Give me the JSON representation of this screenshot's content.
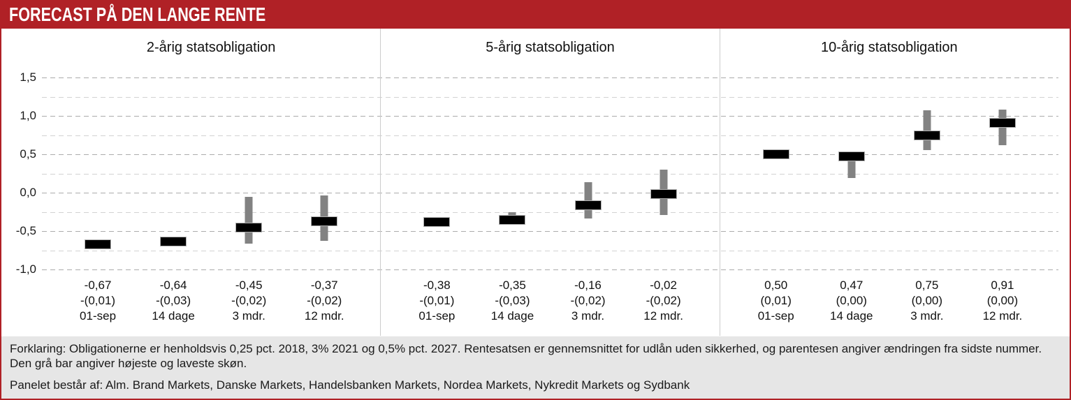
{
  "header": {
    "title": "FORECAST PÅ DEN LANGE RENTE"
  },
  "colors": {
    "accent_red": "#b02126",
    "bar_black": "#000000",
    "range_gray": "#828282",
    "grid_major": "#ababab",
    "grid_minor": "#d2d2d2",
    "separator": "#cccccc",
    "footer_bg": "#e6e6e6",
    "text": "#1a1a1a"
  },
  "chart_data": {
    "type": "bar",
    "subtype": "forecast-range-bars (black bar = consensus forecast, gray bar = highest/lowest estimate)",
    "unit": "pct.",
    "ylim": [
      -1.0,
      1.5
    ],
    "grid_step": 0.25,
    "grid": "dashed horizontal",
    "yticks": [
      {
        "value": 1.5,
        "label": "1,5"
      },
      {
        "value": 1.0,
        "label": "1,0"
      },
      {
        "value": 0.5,
        "label": "0,5"
      },
      {
        "value": 0.0,
        "label": "0,0"
      },
      {
        "value": -0.5,
        "label": "-0,5"
      },
      {
        "value": -1.0,
        "label": "-1,0"
      }
    ],
    "panels": [
      {
        "title": "2-årig statsobligation",
        "points": [
          {
            "period": "01-sep",
            "value": -0.67,
            "value_label": "-0,67",
            "change_label": "-(0,01)",
            "range_low": -0.69,
            "range_high": -0.65
          },
          {
            "period": "14 dage",
            "value": -0.64,
            "value_label": "-0,64",
            "change_label": "-(0,03)",
            "range_low": -0.66,
            "range_high": -0.62
          },
          {
            "period": "3 mdr.",
            "value": -0.45,
            "value_label": "-0,45",
            "change_label": "-(0,02)",
            "range_low": -0.66,
            "range_high": -0.05
          },
          {
            "period": "12 mdr.",
            "value": -0.37,
            "value_label": "-0,37",
            "change_label": "-(0,02)",
            "range_low": -0.63,
            "range_high": -0.04
          }
        ]
      },
      {
        "title": "5-årig statsobligation",
        "points": [
          {
            "period": "01-sep",
            "value": -0.38,
            "value_label": "-0,38",
            "change_label": "-(0,01)",
            "range_low": -0.4,
            "range_high": -0.36
          },
          {
            "period": "14 dage",
            "value": -0.35,
            "value_label": "-0,35",
            "change_label": "-(0,03)",
            "range_low": -0.37,
            "range_high": -0.25
          },
          {
            "period": "3 mdr.",
            "value": -0.16,
            "value_label": "-0,16",
            "change_label": "-(0,02)",
            "range_low": -0.34,
            "range_high": 0.14
          },
          {
            "period": "12 mdr.",
            "value": -0.02,
            "value_label": "-0,02",
            "change_label": "-(0,02)",
            "range_low": -0.29,
            "range_high": 0.3
          }
        ]
      },
      {
        "title": "10-årig statsobligation",
        "points": [
          {
            "period": "01-sep",
            "value": 0.5,
            "value_label": "0,50",
            "change_label": "(0,01)",
            "range_low": 0.48,
            "range_high": 0.52
          },
          {
            "period": "14 dage",
            "value": 0.47,
            "value_label": "0,47",
            "change_label": "(0,00)",
            "range_low": 0.19,
            "range_high": 0.5
          },
          {
            "period": "3 mdr.",
            "value": 0.75,
            "value_label": "0,75",
            "change_label": "(0,00)",
            "range_low": 0.55,
            "range_high": 1.07
          },
          {
            "period": "12 mdr.",
            "value": 0.91,
            "value_label": "0,91",
            "change_label": "(0,00)",
            "range_low": 0.62,
            "range_high": 1.08
          }
        ]
      }
    ]
  },
  "footer": {
    "note": "Forklaring: Obligationerne er henholdsvis 0,25 pct. 2018, 3% 2021 og 0,5% pct. 2027. Rentesatsen er gennemsnittet for udlån uden sikkerhed, og parentesen angiver ændringen fra sidste nummer. Den grå bar angiver højeste og laveste skøn.",
    "panel_note": "Panelet består af: Alm. Brand Markets, Danske Markets, Handelsbanken Markets, Nordea Markets, Nykredit Markets og Sydbank"
  }
}
